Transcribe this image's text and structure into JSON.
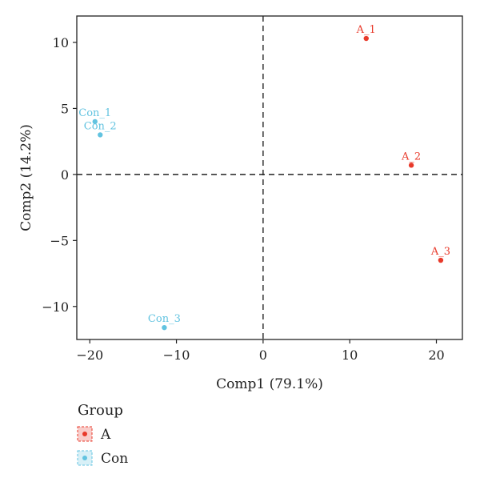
{
  "chart_data": {
    "type": "scatter",
    "xlabel": "Comp1 (79.1%)",
    "ylabel": "Comp2 (14.2%)",
    "xlim": [
      -21.5,
      23
    ],
    "ylim": [
      -12.5,
      12
    ],
    "x_ticks": [
      -20,
      -10,
      0,
      10,
      20
    ],
    "y_ticks": [
      10,
      5,
      0,
      -5,
      -10
    ],
    "x_tick_labels": [
      "−20",
      "−10",
      "0",
      "10",
      "20"
    ],
    "y_tick_labels": [
      "10",
      "5",
      "0",
      "−5",
      "−10"
    ],
    "reference_lines": {
      "x": 0,
      "y": 0,
      "style": "dashed"
    },
    "grid": false,
    "legend": {
      "title": "Group",
      "placement": "bottom-left",
      "entries": [
        {
          "label": "A",
          "color": "#e8392a"
        },
        {
          "label": "Con",
          "color": "#62c3e0"
        }
      ]
    },
    "series": [
      {
        "name": "A",
        "color": "#e8392a",
        "points": [
          {
            "label": "A_1",
            "x": 11.9,
            "y": 10.3
          },
          {
            "label": "A_2",
            "x": 17.1,
            "y": 0.7
          },
          {
            "label": "A_3",
            "x": 20.5,
            "y": -6.5
          }
        ]
      },
      {
        "name": "Con",
        "color": "#62c3e0",
        "points": [
          {
            "label": "Con_1",
            "x": -19.4,
            "y": 4.0
          },
          {
            "label": "Con_2",
            "x": -18.8,
            "y": 3.0
          },
          {
            "label": "Con_3",
            "x": -11.4,
            "y": -11.6
          }
        ]
      }
    ]
  }
}
